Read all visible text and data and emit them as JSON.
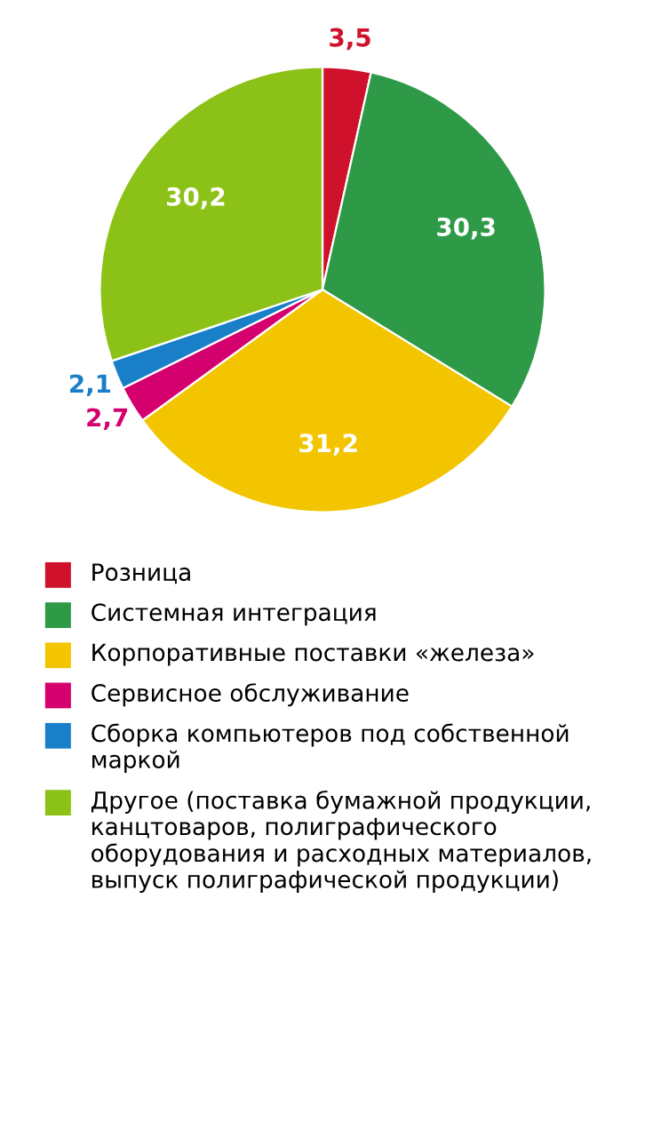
{
  "chart_data": {
    "type": "pie",
    "categories": [
      "Розница",
      "Системная интеграция",
      "Корпоративные поставки «железа»",
      "Сервисное обслуживание",
      "Сборка компьютеров под собственной маркой",
      "Другое (поставка бумажной продукции, канцтоваров, полиграфического оборудования и расходных материалов, выпуск полиграфической продукции)"
    ],
    "values": [
      3.5,
      30.3,
      31.2,
      2.7,
      2.1,
      30.2
    ],
    "value_labels": [
      "3,5",
      "30,3",
      "31,2",
      "2,7",
      "2,1",
      "30,2"
    ],
    "colors": [
      "#d0112b",
      "#2e9a47",
      "#f2c500",
      "#d4006e",
      "#1a7fc9",
      "#8cc218"
    ],
    "legend": "bottom"
  }
}
